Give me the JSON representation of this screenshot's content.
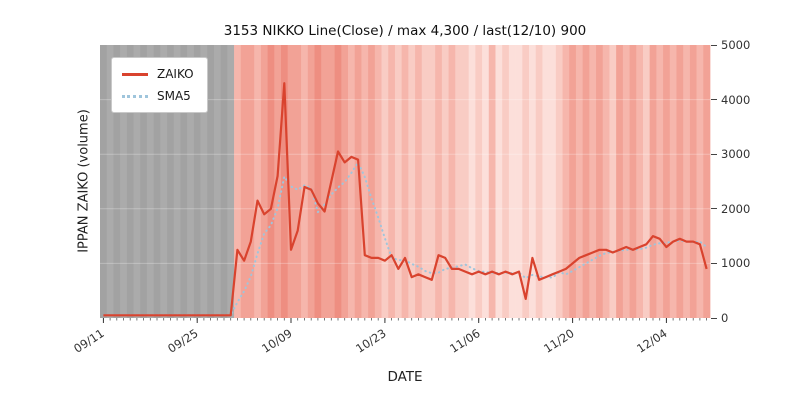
{
  "chart_data": {
    "type": "line",
    "title": "3153 NIKKO Line(Close) / max 4,300 / last(12/10) 900",
    "xlabel": "DATE",
    "ylabel": "IPPAN ZAIKO (volume)",
    "ylim": [
      0,
      5000
    ],
    "yticks": [
      0,
      1000,
      2000,
      3000,
      4000,
      5000
    ],
    "xticks": [
      {
        "label": "09/11",
        "index": 0
      },
      {
        "label": "09/25",
        "index": 14
      },
      {
        "label": "10/09",
        "index": 28
      },
      {
        "label": "10/23",
        "index": 42
      },
      {
        "label": "11/06",
        "index": 56
      },
      {
        "label": "11/20",
        "index": 70
      },
      {
        "label": "12/04",
        "index": 84
      }
    ],
    "annotations": {
      "max": 4300,
      "last": {
        "date": "12/10",
        "value": 900
      }
    },
    "legend_position": "upper-left",
    "series": [
      {
        "name": "ZAIKO",
        "color": "#d9432e",
        "style": "solid"
      },
      {
        "name": "SMA5",
        "color": "#9fc5dc",
        "style": "dotted",
        "derived": "5-period moving average of ZAIKO"
      }
    ],
    "x": [
      "09/11",
      "09/12",
      "09/13",
      "09/14",
      "09/15",
      "09/16",
      "09/17",
      "09/18",
      "09/19",
      "09/20",
      "09/21",
      "09/22",
      "09/23",
      "09/24",
      "09/25",
      "09/26",
      "09/27",
      "09/28",
      "09/29",
      "09/30",
      "10/01",
      "10/02",
      "10/03",
      "10/04",
      "10/05",
      "10/06",
      "10/07",
      "10/08",
      "10/09",
      "10/10",
      "10/11",
      "10/12",
      "10/13",
      "10/14",
      "10/15",
      "10/16",
      "10/17",
      "10/18",
      "10/19",
      "10/20",
      "10/21",
      "10/22",
      "10/23",
      "10/24",
      "10/25",
      "10/26",
      "10/27",
      "10/28",
      "10/29",
      "10/30",
      "10/31",
      "11/01",
      "11/02",
      "11/03",
      "11/04",
      "11/05",
      "11/06",
      "11/07",
      "11/08",
      "11/09",
      "11/10",
      "11/11",
      "11/12",
      "11/13",
      "11/14",
      "11/15",
      "11/16",
      "11/17",
      "11/18",
      "11/19",
      "11/20",
      "11/21",
      "11/22",
      "11/23",
      "11/24",
      "11/25",
      "11/26",
      "11/27",
      "11/28",
      "11/29",
      "11/30",
      "12/01",
      "12/02",
      "12/03",
      "12/04",
      "12/05",
      "12/06",
      "12/07",
      "12/08",
      "12/09",
      "12/10"
    ],
    "values": [
      50,
      50,
      50,
      50,
      50,
      50,
      50,
      50,
      50,
      50,
      50,
      50,
      50,
      50,
      50,
      50,
      50,
      50,
      50,
      50,
      1250,
      1050,
      1400,
      2150,
      1900,
      2000,
      2600,
      4300,
      1250,
      1600,
      2400,
      2350,
      2100,
      1950,
      2500,
      3050,
      2850,
      2950,
      2900,
      1150,
      1100,
      1100,
      1050,
      1150,
      900,
      1100,
      750,
      800,
      750,
      700,
      1150,
      1100,
      900,
      900,
      850,
      800,
      850,
      800,
      850,
      800,
      850,
      800,
      850,
      350,
      1100,
      700,
      750,
      800,
      850,
      900,
      1000,
      1100,
      1150,
      1200,
      1250,
      1250,
      1200,
      1250,
      1300,
      1250,
      1300,
      1350,
      1500,
      1450,
      1300,
      1400,
      1450,
      1400,
      1400,
      1350,
      900
    ],
    "background": {
      "gray_region_end_index": 19,
      "day_colors": [
        "#a2a2a2",
        "#ababab",
        "#a2a2a2",
        "#ababab",
        "#a2a2a2",
        "#ababab",
        "#a2a2a2",
        "#ababab",
        "#a2a2a2",
        "#ababab",
        "#a2a2a2",
        "#ababab",
        "#a2a2a2",
        "#ababab",
        "#a2a2a2",
        "#ababab",
        "#a2a2a2",
        "#ababab",
        "#a2a2a2",
        "#ababab",
        "#f6b6ac",
        "#f2a296",
        "#f2a296",
        "#f6b6ac",
        "#f2a296",
        "#ee8e81",
        "#f2a296",
        "#ee8e81",
        "#f2a296",
        "#f2a296",
        "#f6b6ac",
        "#f2a296",
        "#ee8e81",
        "#f2a296",
        "#f2a296",
        "#ee8e81",
        "#f2a296",
        "#f6b6ac",
        "#f2a296",
        "#f6b6ac",
        "#f2a296",
        "#f6b6ac",
        "#f9ccc4",
        "#f6b6ac",
        "#f9ccc4",
        "#f6b6ac",
        "#f9ccc4",
        "#f6b6ac",
        "#f9ccc4",
        "#f9ccc4",
        "#f6b6ac",
        "#f9ccc4",
        "#f6b6ac",
        "#f9ccc4",
        "#f9ccc4",
        "#fcdfda",
        "#f9ccc4",
        "#fcdfda",
        "#f6b6ac",
        "#fcdfda",
        "#f9ccc4",
        "#fcdfda",
        "#fcdfda",
        "#f9ccc4",
        "#fcdfda",
        "#f9ccc4",
        "#fcdfda",
        "#fcdfda",
        "#f9ccc4",
        "#f6b6ac",
        "#f2a296",
        "#f6b6ac",
        "#f2a296",
        "#f6b6ac",
        "#f2a296",
        "#f6b6ac",
        "#f9ccc4",
        "#f2a296",
        "#f6b6ac",
        "#f2a296",
        "#f6b6ac",
        "#f9ccc4",
        "#f2a296",
        "#f6b6ac",
        "#f2a296",
        "#f6b6ac",
        "#f2a296",
        "#f6b6ac",
        "#f2a296",
        "#f6b6ac",
        "#f2a296"
      ]
    }
  }
}
